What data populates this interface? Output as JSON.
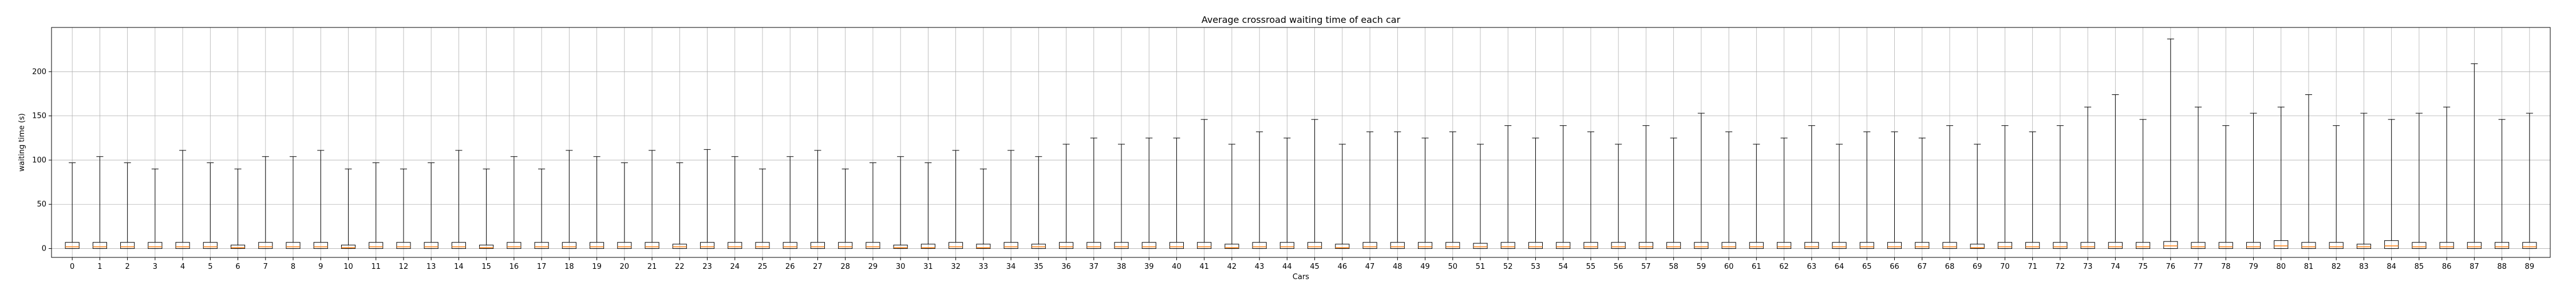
{
  "chart_data": {
    "type": "box",
    "title": "Average crossroad waiting time of each car",
    "xlabel": "Cars",
    "ylabel": "waiting time (s)",
    "ylim": [
      -10,
      250
    ],
    "yticks": [
      0,
      50,
      100,
      150,
      200
    ],
    "grid": true,
    "box_color": "#000000",
    "median_color": "#ff7f0e",
    "categories": [
      "0",
      "1",
      "2",
      "3",
      "4",
      "5",
      "6",
      "7",
      "8",
      "9",
      "10",
      "11",
      "12",
      "13",
      "14",
      "15",
      "16",
      "17",
      "18",
      "19",
      "20",
      "21",
      "22",
      "23",
      "24",
      "25",
      "26",
      "27",
      "28",
      "29",
      "30",
      "31",
      "32",
      "33",
      "34",
      "35",
      "36",
      "37",
      "38",
      "39",
      "40",
      "41",
      "42",
      "43",
      "44",
      "45",
      "46",
      "47",
      "48",
      "49",
      "50",
      "51",
      "52",
      "53",
      "54",
      "55",
      "56",
      "57",
      "58",
      "59",
      "60",
      "61",
      "62",
      "63",
      "64",
      "65",
      "66",
      "67",
      "68",
      "69",
      "70",
      "71",
      "72",
      "73",
      "74",
      "75",
      "76",
      "77",
      "78",
      "79",
      "80",
      "81",
      "82",
      "83",
      "84",
      "85",
      "86",
      "87",
      "88",
      "89"
    ],
    "whisker_max": [
      97,
      104,
      97,
      90,
      111,
      97,
      90,
      104,
      104,
      111,
      90,
      97,
      90,
      97,
      111,
      90,
      104,
      90,
      111,
      104,
      97,
      111,
      97,
      112,
      104,
      90,
      104,
      111,
      90,
      97,
      104,
      97,
      111,
      90,
      111,
      104,
      118,
      125,
      118,
      125,
      125,
      146,
      118,
      132,
      125,
      146,
      118,
      132,
      132,
      125,
      132,
      118,
      139,
      125,
      139,
      132,
      118,
      139,
      125,
      153,
      132,
      118,
      125,
      139,
      118,
      132,
      132,
      125,
      139,
      118,
      139,
      132,
      139,
      160,
      174,
      146,
      237,
      160,
      139,
      153,
      160,
      174,
      139,
      153,
      146,
      153,
      160,
      209,
      146,
      153
    ],
    "q3": [
      7,
      7,
      7,
      7,
      7,
      7,
      4,
      7,
      7,
      7,
      4,
      7,
      7,
      7,
      7,
      4,
      7,
      7,
      7,
      7,
      7,
      7,
      5,
      7,
      7,
      7,
      7,
      7,
      7,
      7,
      4,
      5,
      7,
      5,
      7,
      5,
      7,
      7,
      7,
      7,
      7,
      7,
      5,
      7,
      7,
      7,
      5,
      7,
      7,
      7,
      7,
      6,
      7,
      7,
      7,
      7,
      7,
      7,
      7,
      7,
      7,
      7,
      7,
      7,
      7,
      7,
      7,
      7,
      7,
      5,
      7,
      7,
      7,
      7,
      7,
      7,
      8,
      7,
      7,
      7,
      9,
      7,
      7,
      5,
      9,
      7,
      7,
      7,
      7,
      7
    ],
    "median": [
      2,
      2,
      2,
      2,
      2,
      2,
      1,
      2,
      2,
      2,
      1,
      2,
      2,
      2,
      2,
      1,
      2,
      2,
      2,
      2,
      2,
      2,
      2,
      2,
      2,
      2,
      2,
      2,
      2,
      2,
      1,
      1,
      2,
      1,
      2,
      2,
      2,
      2,
      2,
      2,
      2,
      2,
      1,
      2,
      2,
      2,
      1,
      2,
      2,
      2,
      2,
      2,
      2,
      2,
      2,
      2,
      2,
      2,
      2,
      2,
      2,
      2,
      2,
      2,
      2,
      2,
      2,
      2,
      2,
      1,
      2,
      2,
      2,
      2,
      2,
      2,
      3,
      2,
      2,
      2,
      3,
      2,
      2,
      2,
      3,
      2,
      2,
      2,
      2,
      2
    ],
    "q1": 0,
    "whisker_min": 0
  }
}
